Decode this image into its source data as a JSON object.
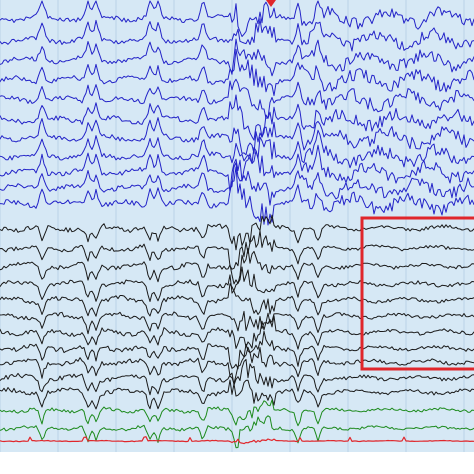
{
  "viewer": {
    "background": "#d6e8f5",
    "grid_color": "#b9d2e6",
    "highlight_box_color": "#e0262b",
    "event_marker_color": "#e0262b"
  },
  "channel_groups": [
    {
      "name": "blue",
      "color": "#2323c8",
      "count": 11
    },
    {
      "name": "black",
      "color": "#1a1a1a",
      "count": 11
    },
    {
      "name": "green",
      "color": "#1c8a1c",
      "count": 2
    },
    {
      "name": "red",
      "color": "#e0262b",
      "count": 1
    }
  ],
  "icons": {
    "event_marker": "triangle-marker-icon"
  }
}
